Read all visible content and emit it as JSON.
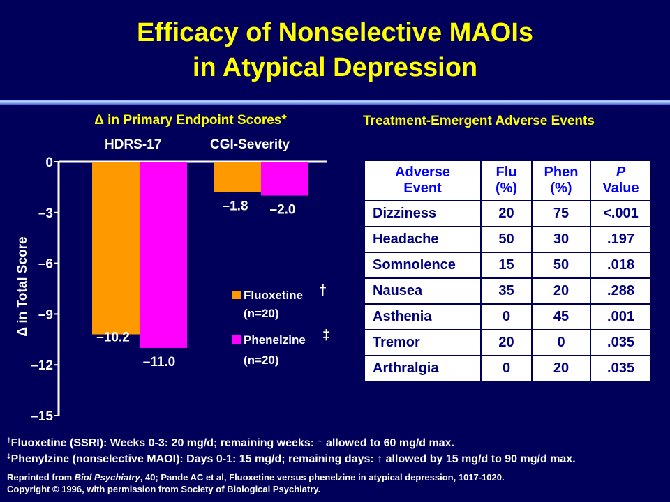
{
  "title": {
    "line1": "Efficacy of Nonselective MAOIs",
    "line2": "in Atypical Depression"
  },
  "chart": {
    "title": "Δ in Primary Endpoint Scores*",
    "ylabel": "Δ in Total Score",
    "groups": [
      "HDRS-17",
      "CGI-Severity"
    ],
    "legend": [
      {
        "label": "Fluoxetine",
        "mark": "†",
        "n": "(n=20)"
      },
      {
        "label": "Phenelzine",
        "mark": "‡",
        "n": "(n=20)"
      }
    ]
  },
  "chart_data": {
    "type": "bar",
    "title": "Δ in Primary Endpoint Scores*",
    "ylabel": "Δ in Total Score",
    "xlabel": "",
    "categories": [
      "HDRS-17",
      "CGI-Severity"
    ],
    "series": [
      {
        "name": "Fluoxetine",
        "values": [
          -10.2,
          -1.8
        ],
        "labels": [
          "–10.2",
          "–1.8"
        ],
        "color": "#ff9900"
      },
      {
        "name": "Phenelzine",
        "values": [
          -11.0,
          -2.0
        ],
        "labels": [
          "–11.0",
          "–2.0"
        ],
        "color": "#ff00ff"
      }
    ],
    "ylim": [
      -15,
      0
    ],
    "yticks": [
      0,
      -3,
      -6,
      -9,
      -12,
      -15
    ],
    "ytick_labels": [
      "0",
      "–3",
      "–6",
      "–9",
      "–12",
      "–15"
    ],
    "grid": false,
    "legend_position": "right"
  },
  "table": {
    "title": "Treatment-Emergent Adverse Events",
    "headers": {
      "event_line1": "Adverse",
      "event_line2": "Event",
      "flu_line1": "Flu",
      "flu_line2": "(%)",
      "phen_line1": "Phen",
      "phen_line2": "(%)",
      "p_line1": "P",
      "p_line2": "Value"
    },
    "rows": [
      {
        "event": "Dizziness",
        "flu": "20",
        "phen": "75",
        "p": "<.001"
      },
      {
        "event": "Headache",
        "flu": "50",
        "phen": "30",
        "p": ".197"
      },
      {
        "event": "Somnolence",
        "flu": "15",
        "phen": "50",
        "p": ".018"
      },
      {
        "event": "Nausea",
        "flu": "35",
        "phen": "20",
        "p": ".288"
      },
      {
        "event": "Asthenia",
        "flu": "0",
        "phen": "45",
        "p": ".001"
      },
      {
        "event": "Tremor",
        "flu": "20",
        "phen": "0",
        "p": ".035"
      },
      {
        "event": "Arthralgia",
        "flu": "0",
        "phen": "20",
        "p": ".035"
      }
    ]
  },
  "footnotes": {
    "dagger_mark": "†",
    "dagger": "Fluoxetine (SSRI):  Weeks 0-3: 20 mg/d;  remaining weeks: ↑ allowed to 60 mg/d max.",
    "ddagger_mark": "‡",
    "ddagger": "Phenylzine (nonselective MAOI): Days 0-1: 15 mg/d; remaining days: ↑ allowed by 15 mg/d to 90 mg/d max."
  },
  "reference": {
    "line1_prefix": "Reprinted from ",
    "line1_journal": "Biol Psychiatry",
    "line1_rest": ", 40; Pande AC et al, Fluoxetine versus phenelzine in atypical depression, 1017-1020.",
    "line2": "Copyright © 1996, with permission from Society of Biological Psychiatry."
  }
}
